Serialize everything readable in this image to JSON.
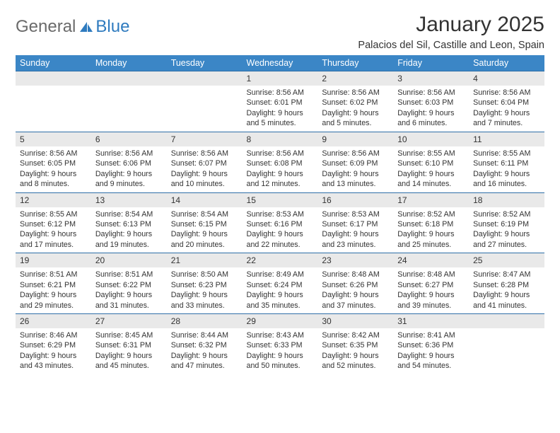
{
  "brand": {
    "part1": "General",
    "part2": "Blue"
  },
  "title": "January 2025",
  "location": "Palacios del Sil, Castille and Leon, Spain",
  "colors": {
    "header_bg": "#3b86c6",
    "row_divider": "#2f6fa8",
    "daynum_bg": "#e9e9e9",
    "logo_gray": "#6a6a6a",
    "logo_blue": "#2f7bbf"
  },
  "day_headers": [
    "Sunday",
    "Monday",
    "Tuesday",
    "Wednesday",
    "Thursday",
    "Friday",
    "Saturday"
  ],
  "weeks": [
    [
      null,
      null,
      null,
      {
        "n": "1",
        "sr": "8:56 AM",
        "ss": "6:01 PM",
        "dl": "9 hours and 5 minutes."
      },
      {
        "n": "2",
        "sr": "8:56 AM",
        "ss": "6:02 PM",
        "dl": "9 hours and 5 minutes."
      },
      {
        "n": "3",
        "sr": "8:56 AM",
        "ss": "6:03 PM",
        "dl": "9 hours and 6 minutes."
      },
      {
        "n": "4",
        "sr": "8:56 AM",
        "ss": "6:04 PM",
        "dl": "9 hours and 7 minutes."
      }
    ],
    [
      {
        "n": "5",
        "sr": "8:56 AM",
        "ss": "6:05 PM",
        "dl": "9 hours and 8 minutes."
      },
      {
        "n": "6",
        "sr": "8:56 AM",
        "ss": "6:06 PM",
        "dl": "9 hours and 9 minutes."
      },
      {
        "n": "7",
        "sr": "8:56 AM",
        "ss": "6:07 PM",
        "dl": "9 hours and 10 minutes."
      },
      {
        "n": "8",
        "sr": "8:56 AM",
        "ss": "6:08 PM",
        "dl": "9 hours and 12 minutes."
      },
      {
        "n": "9",
        "sr": "8:56 AM",
        "ss": "6:09 PM",
        "dl": "9 hours and 13 minutes."
      },
      {
        "n": "10",
        "sr": "8:55 AM",
        "ss": "6:10 PM",
        "dl": "9 hours and 14 minutes."
      },
      {
        "n": "11",
        "sr": "8:55 AM",
        "ss": "6:11 PM",
        "dl": "9 hours and 16 minutes."
      }
    ],
    [
      {
        "n": "12",
        "sr": "8:55 AM",
        "ss": "6:12 PM",
        "dl": "9 hours and 17 minutes."
      },
      {
        "n": "13",
        "sr": "8:54 AM",
        "ss": "6:13 PM",
        "dl": "9 hours and 19 minutes."
      },
      {
        "n": "14",
        "sr": "8:54 AM",
        "ss": "6:15 PM",
        "dl": "9 hours and 20 minutes."
      },
      {
        "n": "15",
        "sr": "8:53 AM",
        "ss": "6:16 PM",
        "dl": "9 hours and 22 minutes."
      },
      {
        "n": "16",
        "sr": "8:53 AM",
        "ss": "6:17 PM",
        "dl": "9 hours and 23 minutes."
      },
      {
        "n": "17",
        "sr": "8:52 AM",
        "ss": "6:18 PM",
        "dl": "9 hours and 25 minutes."
      },
      {
        "n": "18",
        "sr": "8:52 AM",
        "ss": "6:19 PM",
        "dl": "9 hours and 27 minutes."
      }
    ],
    [
      {
        "n": "19",
        "sr": "8:51 AM",
        "ss": "6:21 PM",
        "dl": "9 hours and 29 minutes."
      },
      {
        "n": "20",
        "sr": "8:51 AM",
        "ss": "6:22 PM",
        "dl": "9 hours and 31 minutes."
      },
      {
        "n": "21",
        "sr": "8:50 AM",
        "ss": "6:23 PM",
        "dl": "9 hours and 33 minutes."
      },
      {
        "n": "22",
        "sr": "8:49 AM",
        "ss": "6:24 PM",
        "dl": "9 hours and 35 minutes."
      },
      {
        "n": "23",
        "sr": "8:48 AM",
        "ss": "6:26 PM",
        "dl": "9 hours and 37 minutes."
      },
      {
        "n": "24",
        "sr": "8:48 AM",
        "ss": "6:27 PM",
        "dl": "9 hours and 39 minutes."
      },
      {
        "n": "25",
        "sr": "8:47 AM",
        "ss": "6:28 PM",
        "dl": "9 hours and 41 minutes."
      }
    ],
    [
      {
        "n": "26",
        "sr": "8:46 AM",
        "ss": "6:29 PM",
        "dl": "9 hours and 43 minutes."
      },
      {
        "n": "27",
        "sr": "8:45 AM",
        "ss": "6:31 PM",
        "dl": "9 hours and 45 minutes."
      },
      {
        "n": "28",
        "sr": "8:44 AM",
        "ss": "6:32 PM",
        "dl": "9 hours and 47 minutes."
      },
      {
        "n": "29",
        "sr": "8:43 AM",
        "ss": "6:33 PM",
        "dl": "9 hours and 50 minutes."
      },
      {
        "n": "30",
        "sr": "8:42 AM",
        "ss": "6:35 PM",
        "dl": "9 hours and 52 minutes."
      },
      {
        "n": "31",
        "sr": "8:41 AM",
        "ss": "6:36 PM",
        "dl": "9 hours and 54 minutes."
      },
      null
    ]
  ],
  "labels": {
    "sunrise": "Sunrise:",
    "sunset": "Sunset:",
    "daylight": "Daylight:"
  }
}
